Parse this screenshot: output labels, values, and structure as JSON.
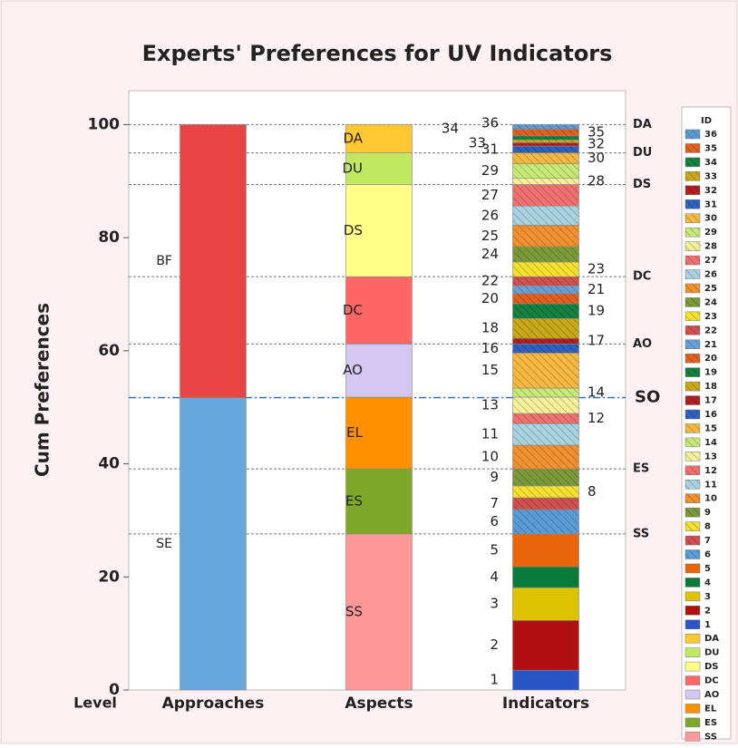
{
  "chart_data": {
    "type": "stacked-column",
    "title": "Experts' Preferences for UV Indicators",
    "y_label": "Cum Preferences",
    "level_label": "Level",
    "legend_title": "ID",
    "categories": [
      "Approaches",
      "Aspects",
      "Indicators"
    ],
    "ylim": [
      0,
      106
    ],
    "yticks": [
      0,
      20,
      40,
      60,
      80,
      100
    ],
    "stacks": [
      [
        {
          "label": "SE",
          "value": 51.7,
          "color": "#66a8dc"
        },
        {
          "label": "BF",
          "value": 48.3,
          "color": "#e84444"
        }
      ],
      [
        {
          "label": "SS",
          "value": 27.6,
          "color": "#ff9999"
        },
        {
          "label": "ES",
          "value": 11.5,
          "color": "#7ea82a"
        },
        {
          "label": "EL",
          "value": 12.7,
          "color": "#ff9000"
        },
        {
          "label": "AO",
          "value": 9.4,
          "color": "#d4c8f0"
        },
        {
          "label": "DC",
          "value": 11.9,
          "color": "#ff6666"
        },
        {
          "label": "DS",
          "value": 16.3,
          "color": "#ffff88"
        },
        {
          "label": "DU",
          "value": 5.6,
          "color": "#c0e860"
        },
        {
          "label": "DA",
          "value": 5.0,
          "color": "#ffc830"
        }
      ],
      [
        {
          "label": "1",
          "value": 3.5,
          "color": "#2a55c4",
          "hatch": false
        },
        {
          "label": "2",
          "value": 8.8,
          "color": "#b01010",
          "hatch": false
        },
        {
          "label": "3",
          "value": 5.8,
          "color": "#dcc200",
          "hatch": false
        },
        {
          "label": "4",
          "value": 3.7,
          "color": "#0a7a3a",
          "hatch": false
        },
        {
          "label": "5",
          "value": 5.8,
          "color": "#e8650a",
          "hatch": false
        },
        {
          "label": "6",
          "value": 4.3,
          "color": "#5b9bd5",
          "hatch": true
        },
        {
          "label": "7",
          "value": 2.1,
          "color": "#d05050",
          "hatch": true
        },
        {
          "label": "8",
          "value": 2.1,
          "color": "#f5e030",
          "hatch": true
        },
        {
          "label": "9",
          "value": 3.0,
          "color": "#7a9a3a",
          "hatch": true
        },
        {
          "label": "10",
          "value": 4.2,
          "color": "#f09030",
          "hatch": true
        },
        {
          "label": "11",
          "value": 3.8,
          "color": "#a9d2e0",
          "hatch": true
        },
        {
          "label": "12",
          "value": 1.8,
          "color": "#f07070",
          "hatch": true
        },
        {
          "label": "13",
          "value": 2.9,
          "color": "#f5f09a",
          "hatch": true
        },
        {
          "label": "14",
          "value": 1.6,
          "color": "#c8e878",
          "hatch": true
        },
        {
          "label": "15",
          "value": 6.2,
          "color": "#f5b840",
          "hatch": true
        },
        {
          "label": "16",
          "value": 1.6,
          "color": "#3060c0",
          "hatch": true
        },
        {
          "label": "17",
          "value": 1.0,
          "color": "#b02020",
          "hatch": true
        },
        {
          "label": "18",
          "value": 3.5,
          "color": "#c8a818",
          "hatch": true
        },
        {
          "label": "19",
          "value": 2.6,
          "color": "#158040",
          "hatch": true
        },
        {
          "label": "20",
          "value": 1.8,
          "color": "#e06020",
          "hatch": true
        },
        {
          "label": "21",
          "value": 1.4,
          "color": "#6a9fd5",
          "hatch": true
        },
        {
          "label": "22",
          "value": 1.6,
          "color": "#d05050",
          "hatch": true
        },
        {
          "label": "23",
          "value": 2.6,
          "color": "#f5e030",
          "hatch": true
        },
        {
          "label": "24",
          "value": 2.7,
          "color": "#7a9a3a",
          "hatch": true
        },
        {
          "label": "25",
          "value": 3.8,
          "color": "#f09030",
          "hatch": true
        },
        {
          "label": "26",
          "value": 3.4,
          "color": "#a9d2e0",
          "hatch": true
        },
        {
          "label": "27",
          "value": 3.8,
          "color": "#f07070",
          "hatch": true
        },
        {
          "label": "28",
          "value": 1.1,
          "color": "#f5f09a",
          "hatch": true
        },
        {
          "label": "29",
          "value": 2.6,
          "color": "#c8e878",
          "hatch": true
        },
        {
          "label": "30",
          "value": 1.9,
          "color": "#f5b840",
          "hatch": true
        },
        {
          "label": "31",
          "value": 1.2,
          "color": "#3060c0",
          "hatch": true
        },
        {
          "label": "32",
          "value": 0.6,
          "color": "#b02020",
          "hatch": true
        },
        {
          "label": "33",
          "value": 0.5,
          "color": "#c8a818",
          "hatch": true
        },
        {
          "label": "34",
          "value": 0.7,
          "color": "#158040",
          "hatch": true
        },
        {
          "label": "35",
          "value": 1.2,
          "color": "#e06020",
          "hatch": true
        },
        {
          "label": "36",
          "value": 0.8,
          "color": "#5b9bd5",
          "hatch": true
        }
      ]
    ],
    "reference_lines": [
      {
        "label": "DA",
        "value": 100,
        "color": "#ffc830",
        "style": "dashed"
      },
      {
        "label": "DU",
        "value": 95.0,
        "color": "#c0e860",
        "style": "dashed"
      },
      {
        "label": "DS",
        "value": 89.4,
        "color": "#f5f07a",
        "style": "dashed"
      },
      {
        "label": "DC",
        "value": 73.1,
        "color": "#ff6666",
        "style": "dashed"
      },
      {
        "label": "AO",
        "value": 61.2,
        "color": "#c77dba",
        "style": "dashed"
      },
      {
        "label": "SO",
        "value": 51.7,
        "color": "#1a6ed8",
        "style": "dash-dot"
      },
      {
        "label": "ES",
        "value": 39.1,
        "color": "#7ea82a",
        "style": "dashed"
      },
      {
        "label": "SS",
        "value": 27.6,
        "color": "#ff9999",
        "style": "dashed"
      }
    ]
  }
}
